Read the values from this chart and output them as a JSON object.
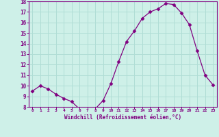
{
  "x": [
    0,
    1,
    2,
    3,
    4,
    5,
    6,
    7,
    8,
    9,
    10,
    11,
    12,
    13,
    14,
    15,
    16,
    17,
    18,
    19,
    20,
    21,
    22,
    23
  ],
  "y": [
    9.5,
    10.0,
    9.7,
    9.2,
    8.8,
    8.5,
    7.8,
    7.8,
    7.8,
    8.6,
    10.2,
    12.3,
    14.2,
    15.2,
    16.4,
    17.0,
    17.3,
    17.8,
    17.7,
    16.9,
    15.8,
    13.3,
    11.0,
    10.1
  ],
  "line_color": "#800080",
  "marker": "D",
  "marker_size": 2.5,
  "bg_color": "#cef0e8",
  "grid_color": "#b0ddd5",
  "xlabel": "Windchill (Refroidissement éolien,°C)",
  "xlabel_color": "#800080",
  "tick_color": "#800080",
  "spine_color": "#800080",
  "ylim": [
    8,
    18
  ],
  "xlim": [
    -0.5,
    23.5
  ],
  "yticks": [
    8,
    9,
    10,
    11,
    12,
    13,
    14,
    15,
    16,
    17,
    18
  ],
  "xticks": [
    0,
    1,
    2,
    3,
    4,
    5,
    6,
    7,
    8,
    9,
    10,
    11,
    12,
    13,
    14,
    15,
    16,
    17,
    18,
    19,
    20,
    21,
    22,
    23
  ]
}
